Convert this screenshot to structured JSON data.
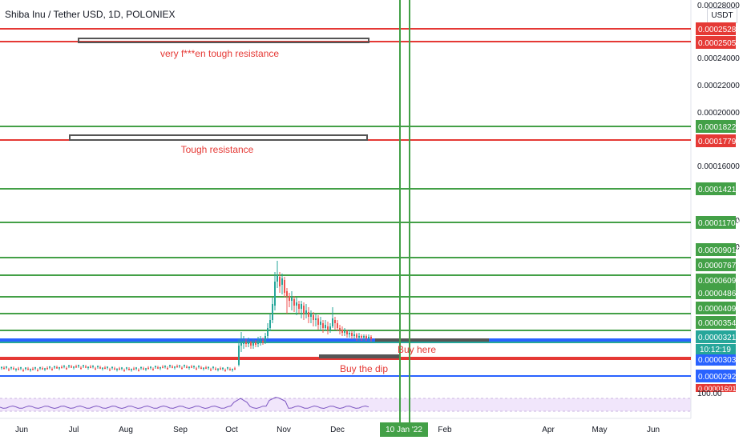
{
  "header": {
    "title": "Shiba Inu / Tether USD, 1D, POLONIEX",
    "unit": "USDT"
  },
  "chart_data": {
    "type": "line",
    "title": "Shiba Inu / Tether USD, 1D, POLONIEX",
    "price_axis_ticks": [
      "0.00028000",
      "0.00024000",
      "0.00022000",
      "0.00020000",
      "0.00016000",
      "0.00012000",
      "0.00010000"
    ],
    "time_axis_ticks": [
      "Jun",
      "Jul",
      "Aug",
      "Sep",
      "Oct",
      "Nov",
      "Dec",
      "Feb",
      "Apr",
      "May",
      "Jun"
    ],
    "current_date_label": "10 Jan '22",
    "levels": [
      {
        "value": "0.00025288",
        "color": "#e53935"
      },
      {
        "value": "0.00025052",
        "color": "#e53935"
      },
      {
        "value": "0.00018221",
        "color": "#43a047"
      },
      {
        "value": "0.00017792",
        "color": "#e53935"
      },
      {
        "value": "0.00014218",
        "color": "#43a047"
      },
      {
        "value": "0.00011704",
        "color": "#43a047"
      },
      {
        "value": "0.00009016",
        "color": "#43a047"
      },
      {
        "value": "0.00007677",
        "color": "#43a047"
      },
      {
        "value": "0.00006099",
        "color": "#43a047"
      },
      {
        "value": "0.00004865",
        "color": "#43a047"
      },
      {
        "value": "0.00004091",
        "color": "#43a047"
      },
      {
        "value": "0.00003544",
        "color": "#43a047"
      },
      {
        "value": "0.00003217",
        "color": "#26a69a"
      },
      {
        "value": "0.00003038",
        "color": "#2962ff"
      },
      {
        "value": "0.00002927",
        "color": "#2962ff"
      }
    ],
    "countdown": "10:12:19",
    "partial_label": "0.00001601",
    "rsi_label": "100.00",
    "annotations": [
      {
        "text": "very f***en tough resistance",
        "color": "#e53935"
      },
      {
        "text": "Tough resistance",
        "color": "#e53935"
      },
      {
        "text": "Buy here",
        "color": "#e53935"
      },
      {
        "text": "Buy the dip",
        "color": "#e53935"
      }
    ],
    "colors": {
      "up": "#26a69a",
      "down": "#ef5350",
      "rsi": "#7e57c2"
    }
  }
}
